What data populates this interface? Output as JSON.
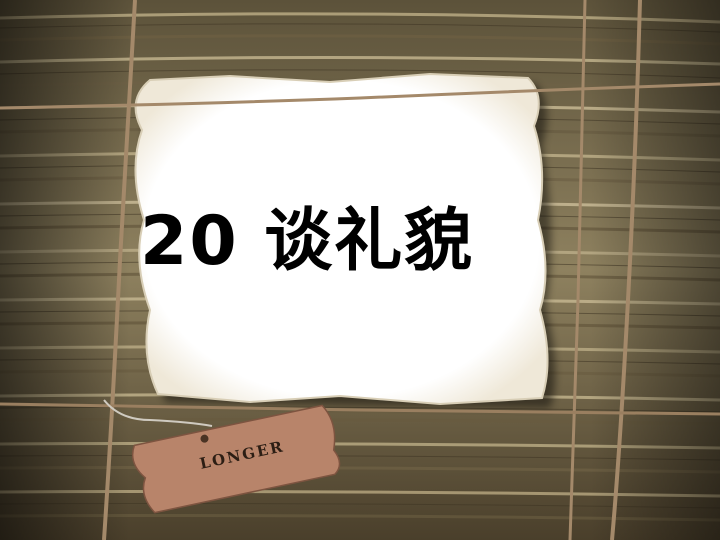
{
  "slide": {
    "title": "20 谈礼貌",
    "tag_label": "LONGER"
  },
  "colors": {
    "paper_stack": "#8b7d5c",
    "paper_dark": "#4a3f2b",
    "frame_white": "#ffffff",
    "twine": "#a4896a",
    "tag": "#b8846a",
    "title_text": "#000000"
  }
}
